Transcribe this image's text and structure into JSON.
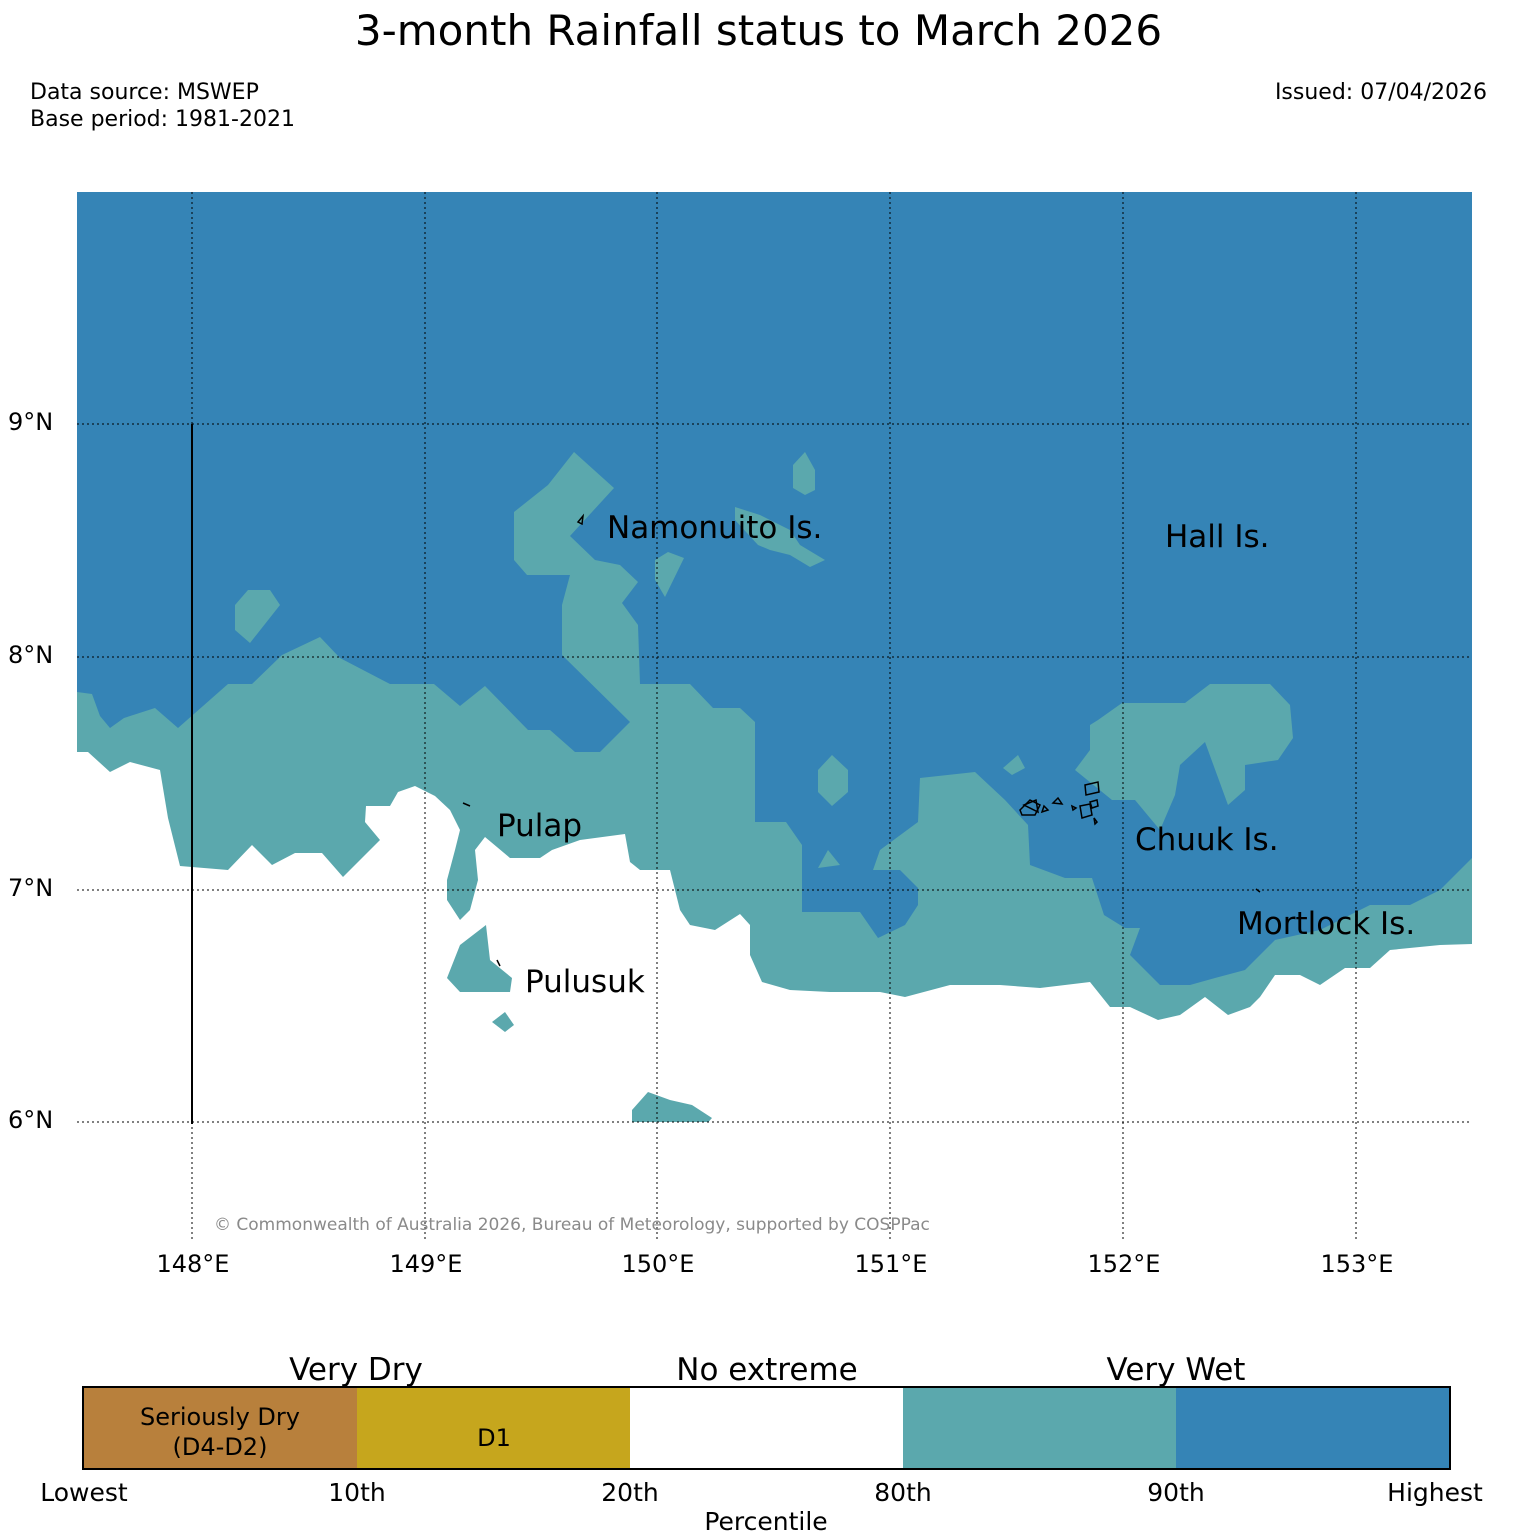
{
  "title": "3-month Rainfall status to March 2026",
  "data_source": "Data source: MSWEP",
  "base_period": "Base period: 1981-2021",
  "issued": "Issued: 07/04/2026",
  "copyright": "© Commonwealth of Australia 2026, Bureau of Meteorology, supported by COSPPac",
  "colors": {
    "seriously_dry": "#b8803c",
    "d1": "#c6a61d",
    "no_extreme": "#ffffff",
    "wet_80_90": "#5ba8ad",
    "wet_90_plus": "#3584b6"
  },
  "map": {
    "lat_labels": [
      "9°N",
      "8°N",
      "7°N",
      "6°N"
    ],
    "lon_labels": [
      "148°E",
      "149°E",
      "150°E",
      "151°E",
      "152°E",
      "153°E"
    ],
    "places": [
      "Namonuito Is.",
      "Hall Is.",
      "Pulap",
      "Chuuk Is.",
      "Mortlock Is.",
      "Pulusuk"
    ]
  },
  "legend": {
    "categories": [
      "Very Dry",
      "No extreme",
      "Very Wet"
    ],
    "boxes": [
      "Seriously Dry",
      "(D4-D2)",
      "D1"
    ],
    "ticks": [
      "Lowest",
      "10th",
      "20th",
      "80th",
      "90th",
      "Highest"
    ],
    "xlabel": "Percentile"
  }
}
